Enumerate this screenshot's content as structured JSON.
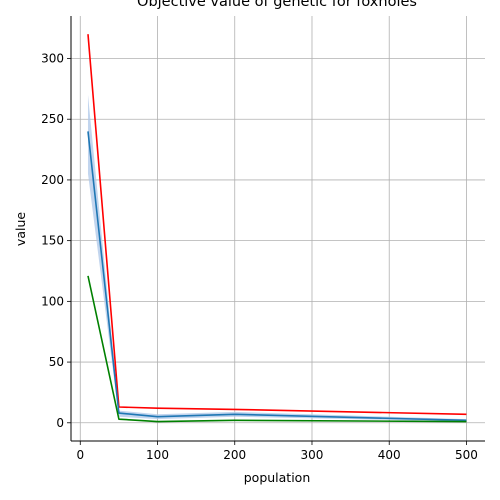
{
  "chart_data": {
    "type": "line",
    "title": "Objective value of genetic for foxholes",
    "xlabel": "population",
    "ylabel": "value",
    "xlim": [
      -12,
      524
    ],
    "ylim": [
      -15,
      335
    ],
    "xticks": [
      0,
      100,
      200,
      300,
      400,
      500
    ],
    "yticks": [
      0,
      50,
      100,
      150,
      200,
      250,
      300
    ],
    "grid": true,
    "x": [
      10,
      50,
      100,
      200,
      500
    ],
    "series": [
      {
        "values": [
          320,
          13,
          12,
          11,
          7
        ],
        "color": "#ff0000"
      },
      {
        "values": [
          240,
          8,
          5,
          7,
          2
        ],
        "color": "#1f77b4"
      },
      {
        "values": [
          121,
          3,
          1,
          2,
          1
        ],
        "color": "#008000"
      }
    ],
    "band": {
      "lower": [
        205,
        5,
        3,
        5,
        1
      ],
      "upper": [
        270,
        10,
        7,
        9,
        3
      ],
      "color": "#aec7e8"
    }
  }
}
